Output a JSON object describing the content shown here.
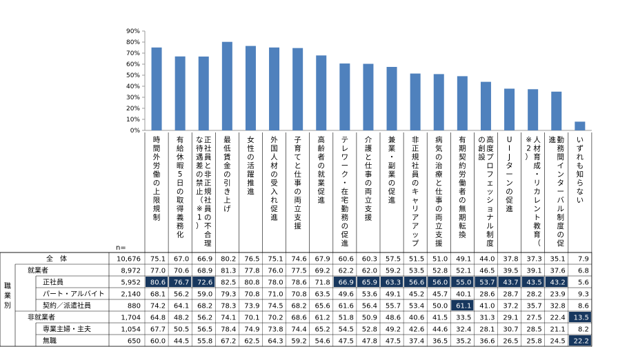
{
  "chart_data": {
    "type": "bar",
    "ylim": [
      0,
      90
    ],
    "yticks": [
      "0%",
      "10%",
      "20%",
      "30%",
      "40%",
      "50%",
      "60%",
      "70%",
      "80%",
      "90%"
    ],
    "bar_color": "#4f81bd",
    "categories": [
      "時間外労働の上限規制",
      "有給休暇5日の取得義務化",
      "正社員と非正規社員の不合理な待遇差の禁止（※1）",
      "最低賃金の引き上げ",
      "女性の活躍推進",
      "外国人材の受入れ促進",
      "子育てと仕事の両立支援",
      "高齢者の就業促進",
      "テレワーク・在宅勤務の促進",
      "介護と仕事の両立支援",
      "兼業・副業の促進",
      "非正規社員のキャリアアップ",
      "病気の治療と仕事の両立支援",
      "有期契約労働者の無期転換",
      "高度プロフェッショナル制度の創設",
      "UIJターンの促進",
      "人材育成・リカレント教育（※2）",
      "勤務間インターバル制度の促進",
      "いずれも知らない"
    ],
    "values": [
      75.1,
      67.0,
      66.9,
      80.2,
      76.5,
      75.1,
      74.6,
      67.9,
      60.6,
      60.3,
      57.5,
      51.5,
      51.0,
      49.1,
      44.0,
      37.8,
      37.3,
      35.1,
      7.9
    ]
  },
  "table": {
    "n_label": "n=",
    "group_label": "職業別",
    "highlight_bg": "#17375e",
    "highlight_fg": "#ffffff",
    "rows": [
      {
        "label": "全　体",
        "n": "10,676",
        "values": [
          "75.1",
          "67.0",
          "66.9",
          "80.2",
          "76.5",
          "75.1",
          "74.6",
          "67.9",
          "60.6",
          "60.3",
          "57.5",
          "51.5",
          "51.0",
          "49.1",
          "44.0",
          "37.8",
          "37.3",
          "35.1",
          "7.9"
        ],
        "hl": []
      },
      {
        "label": "就業者",
        "n": "8,972",
        "values": [
          "77.0",
          "70.6",
          "68.9",
          "81.3",
          "77.8",
          "76.0",
          "77.5",
          "69.2",
          "62.2",
          "62.0",
          "59.2",
          "53.5",
          "52.8",
          "52.1",
          "46.5",
          "39.5",
          "39.1",
          "37.6",
          "6.8"
        ],
        "hl": []
      },
      {
        "label": "正社員",
        "n": "5,952",
        "values": [
          "80.6",
          "76.7",
          "72.6",
          "82.5",
          "80.8",
          "78.0",
          "78.6",
          "71.8",
          "66.9",
          "65.9",
          "63.3",
          "56.6",
          "56.0",
          "55.0",
          "53.7",
          "43.7",
          "43.5",
          "43.2",
          "5.6"
        ],
        "hl": [
          0,
          1,
          2,
          8,
          9,
          10,
          11,
          12,
          13,
          14,
          15,
          16,
          17
        ]
      },
      {
        "label": "パート・アルバイト",
        "n": "2,140",
        "values": [
          "68.1",
          "56.2",
          "59.0",
          "79.3",
          "70.8",
          "71.0",
          "70.8",
          "63.5",
          "49.6",
          "53.6",
          "49.1",
          "45.2",
          "45.7",
          "40.1",
          "28.6",
          "28.7",
          "28.2",
          "23.9",
          "9.3"
        ],
        "hl": []
      },
      {
        "label": "契約／派遣社員",
        "n": "880",
        "values": [
          "74.2",
          "64.1",
          "68.2",
          "78.3",
          "73.9",
          "74.5",
          "68.2",
          "65.6",
          "61.6",
          "56.4",
          "55.7",
          "53.4",
          "50.0",
          "61.1",
          "41.0",
          "37.2",
          "35.7",
          "32.8",
          "8.6"
        ],
        "hl": [
          13
        ]
      },
      {
        "label": "非就業者",
        "n": "1,704",
        "values": [
          "64.8",
          "48.2",
          "56.2",
          "74.1",
          "70.1",
          "70.2",
          "68.6",
          "61.2",
          "51.8",
          "50.9",
          "48.6",
          "40.6",
          "41.5",
          "33.5",
          "31.3",
          "29.1",
          "27.5",
          "22.4",
          "13.5"
        ],
        "hl": [
          18
        ]
      },
      {
        "label": "専業主婦・主夫",
        "n": "1,054",
        "values": [
          "67.7",
          "50.5",
          "56.5",
          "78.4",
          "74.9",
          "73.8",
          "74.4",
          "65.2",
          "54.5",
          "52.8",
          "49.2",
          "42.6",
          "44.6",
          "32.4",
          "28.1",
          "30.7",
          "28.5",
          "21.1",
          "8.2"
        ],
        "hl": []
      },
      {
        "label": "無職",
        "n": "650",
        "values": [
          "60.0",
          "44.5",
          "55.8",
          "67.2",
          "62.5",
          "64.3",
          "59.2",
          "54.6",
          "47.5",
          "47.8",
          "47.5",
          "37.4",
          "36.5",
          "35.2",
          "36.6",
          "26.5",
          "25.8",
          "24.5",
          "22.2"
        ],
        "hl": [
          18
        ]
      }
    ]
  }
}
